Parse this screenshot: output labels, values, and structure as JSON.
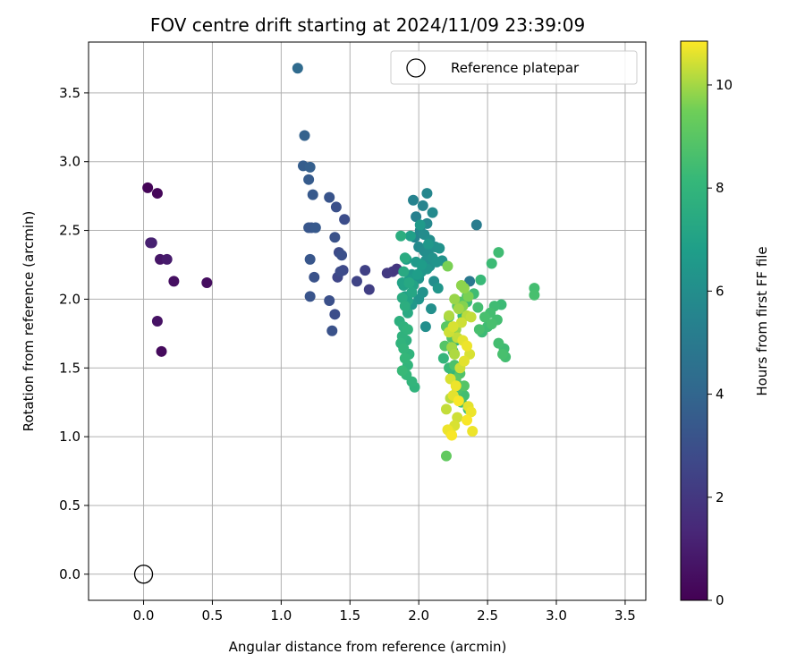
{
  "chart_data": {
    "type": "scatter",
    "title": "FOV centre drift starting at 2024/11/09 23:39:09",
    "xlabel": "Angular distance from reference (arcmin)",
    "ylabel": "Rotation from reference (arcmin)",
    "xlim": [
      -0.4,
      3.65
    ],
    "ylim": [
      -0.19,
      3.87
    ],
    "xticks": [
      0.0,
      0.5,
      1.0,
      1.5,
      2.0,
      2.5,
      3.0,
      3.5
    ],
    "yticks": [
      0.0,
      0.5,
      1.0,
      1.5,
      2.0,
      2.5,
      3.0,
      3.5
    ],
    "grid": true,
    "legend": {
      "position": "top-right",
      "entries": [
        "Reference platepar"
      ]
    },
    "reference_point": {
      "x": 0.0,
      "y": 0.0,
      "label": "Reference platepar"
    },
    "colorbar": {
      "label": "Hours from first FF file",
      "range": [
        0,
        10.85
      ],
      "ticks": [
        0,
        2,
        4,
        6,
        8,
        10
      ],
      "colormap": "viridis"
    },
    "series": [
      {
        "x": [
          0.03,
          0.1,
          0.05,
          0.06,
          0.12,
          0.17,
          0.22,
          0.46,
          0.1,
          0.13
        ],
        "y": [
          2.81,
          2.77,
          2.41,
          2.41,
          2.29,
          2.29,
          2.13,
          2.12,
          1.84,
          1.62
        ],
        "c": [
          0.1,
          0.2,
          1.0,
          1.1,
          0.7,
          0.9,
          0.5,
          0.4,
          0.6,
          0.3
        ]
      },
      {
        "x": [
          1.12,
          1.17,
          1.16,
          1.21,
          1.2,
          1.23,
          1.2,
          1.22,
          1.25,
          1.35,
          1.4,
          1.46,
          1.39,
          1.42,
          1.44,
          1.21,
          1.24,
          1.21,
          1.35,
          1.39,
          1.37,
          1.45,
          1.43,
          1.41,
          1.55,
          1.61,
          1.64,
          1.77,
          1.81,
          1.84
        ],
        "y": [
          3.68,
          3.19,
          2.97,
          2.96,
          2.87,
          2.76,
          2.52,
          2.52,
          2.52,
          2.74,
          2.67,
          2.58,
          2.45,
          2.34,
          2.32,
          2.29,
          2.16,
          2.02,
          1.99,
          1.89,
          1.77,
          2.21,
          2.2,
          2.16,
          2.13,
          2.21,
          2.07,
          2.19,
          2.2,
          2.22
        ],
        "c": [
          4.2,
          3.8,
          3.6,
          3.7,
          3.5,
          3.4,
          3.3,
          3.2,
          3.4,
          3.2,
          3.0,
          2.9,
          3.1,
          2.8,
          3.0,
          3.3,
          3.1,
          3.2,
          3.0,
          2.9,
          3.1,
          2.7,
          2.8,
          2.6,
          2.5,
          2.4,
          2.3,
          2.1,
          2.0,
          1.9
        ]
      },
      {
        "x": [
          1.96,
          2.06,
          2.03,
          1.98,
          2.1,
          2.06,
          2.01,
          2.04,
          1.97,
          2.08,
          2.12,
          2.15,
          2.0,
          2.04,
          2.07,
          2.1,
          2.05,
          2.13,
          2.08,
          2.02,
          1.95,
          2.0,
          1.93,
          1.89,
          1.91,
          1.98,
          2.06,
          2.11,
          2.03,
          2.0,
          1.95,
          2.09,
          2.05,
          2.14,
          2.37,
          2.42,
          2.01,
          1.94,
          1.88,
          1.9,
          1.92,
          1.96,
          1.99,
          2.02,
          2.07,
          2.17
        ],
        "y": [
          2.72,
          2.77,
          2.68,
          2.6,
          2.63,
          2.55,
          2.5,
          2.47,
          2.45,
          2.43,
          2.38,
          2.37,
          2.38,
          2.35,
          2.33,
          2.3,
          2.28,
          2.27,
          2.24,
          2.2,
          2.18,
          2.15,
          2.14,
          2.1,
          2.29,
          2.27,
          2.22,
          2.13,
          2.05,
          2.0,
          1.96,
          1.93,
          1.8,
          2.08,
          2.13,
          2.54,
          2.54,
          2.46,
          2.12,
          2.02,
          1.99,
          2.1,
          2.18,
          2.25,
          2.4,
          2.28
        ],
        "c": [
          5.4,
          5.6,
          5.5,
          5.3,
          5.8,
          5.7,
          5.6,
          5.9,
          5.5,
          6.0,
          6.1,
          6.2,
          5.8,
          5.9,
          6.0,
          6.2,
          6.1,
          6.3,
          6.1,
          6.4,
          6.5,
          6.3,
          6.7,
          7.0,
          6.8,
          6.6,
          6.4,
          6.0,
          6.2,
          6.3,
          6.5,
          6.1,
          6.0,
          6.4,
          4.9,
          5.1,
          6.6,
          6.9,
          7.0,
          6.9,
          7.1,
          7.0,
          6.8,
          6.7,
          6.5,
          6.2
        ]
      },
      {
        "x": [
          1.87,
          1.9,
          1.89,
          1.93,
          1.95,
          1.88,
          1.9,
          1.92,
          1.86,
          1.89,
          1.92,
          1.88,
          1.91,
          1.87,
          1.89,
          1.93,
          1.9,
          1.92,
          1.88,
          1.91,
          1.95,
          1.97,
          2.18,
          2.22,
          2.25,
          2.27,
          2.3,
          2.33,
          2.31,
          2.36,
          2.27,
          2.25,
          2.32,
          2.35,
          2.4,
          2.43,
          2.48,
          2.52,
          2.55,
          2.6,
          2.57,
          2.53,
          2.5,
          2.46,
          2.44,
          2.58,
          2.62,
          2.61,
          2.63,
          2.58,
          2.84,
          2.84,
          2.53,
          2.45,
          2.35,
          2.3,
          2.28,
          2.22,
          2.2,
          2.24,
          2.19,
          2.26,
          2.3,
          2.27,
          2.33,
          2.28
        ],
        "y": [
          2.46,
          2.3,
          2.2,
          2.12,
          2.05,
          2.01,
          1.95,
          1.9,
          1.84,
          1.8,
          1.78,
          1.73,
          1.7,
          1.68,
          1.64,
          1.6,
          1.57,
          1.52,
          1.48,
          1.45,
          1.4,
          1.36,
          1.57,
          1.5,
          1.45,
          1.4,
          1.35,
          1.3,
          1.25,
          1.2,
          1.7,
          1.62,
          1.88,
          1.98,
          2.04,
          1.94,
          1.87,
          1.9,
          1.95,
          1.96,
          1.85,
          1.82,
          1.8,
          1.76,
          1.78,
          1.68,
          1.64,
          1.6,
          1.58,
          2.34,
          2.08,
          2.03,
          2.26,
          2.14,
          2.02,
          1.98,
          1.95,
          1.87,
          1.8,
          1.72,
          1.66,
          1.52,
          1.46,
          1.42,
          1.37,
          1.34
        ],
        "c": [
          7.6,
          7.5,
          7.4,
          7.3,
          7.2,
          7.5,
          7.6,
          7.4,
          7.7,
          7.8,
          7.9,
          7.8,
          7.7,
          7.9,
          8.0,
          7.9,
          8.1,
          8.0,
          8.2,
          8.1,
          8.0,
          7.9,
          8.0,
          8.2,
          8.1,
          8.3,
          8.4,
          8.5,
          8.3,
          8.4,
          8.0,
          8.1,
          8.2,
          8.3,
          8.4,
          8.5,
          8.6,
          8.5,
          8.4,
          8.3,
          8.5,
          8.6,
          8.4,
          8.3,
          8.6,
          8.5,
          8.4,
          8.6,
          8.5,
          8.4,
          8.5,
          8.6,
          8.3,
          8.2,
          8.7,
          8.9,
          9.0,
          9.1,
          9.0,
          8.8,
          8.9,
          8.7,
          8.8,
          9.0,
          8.9,
          8.7
        ]
      },
      {
        "x": [
          2.21,
          2.33,
          2.26,
          2.29,
          2.22,
          2.35,
          2.38,
          2.31,
          2.25,
          2.22,
          2.28,
          2.32,
          2.35,
          2.37,
          2.33,
          2.3,
          2.23,
          2.27,
          2.25,
          2.29,
          2.36,
          2.38,
          2.35,
          2.26,
          2.21,
          2.24,
          2.23,
          2.28,
          2.2,
          2.23,
          2.39,
          2.26,
          2.24,
          2.27,
          2.32,
          2.36,
          2.31
        ],
        "y": [
          2.24,
          2.08,
          2.0,
          1.93,
          1.88,
          1.88,
          1.87,
          1.83,
          1.8,
          1.76,
          1.72,
          1.7,
          1.66,
          1.6,
          1.55,
          1.5,
          1.42,
          1.37,
          1.3,
          1.26,
          1.22,
          1.18,
          1.12,
          1.08,
          1.05,
          1.01,
          1.03,
          1.14,
          1.2,
          1.28,
          1.04,
          1.6,
          1.65,
          1.78,
          1.95,
          2.02,
          2.1
        ],
        "c": [
          9.6,
          9.8,
          9.9,
          10.0,
          10.1,
          10.2,
          10.3,
          10.4,
          10.5,
          10.4,
          10.3,
          10.6,
          10.7,
          10.5,
          10.6,
          10.4,
          10.5,
          10.7,
          10.6,
          10.8,
          10.6,
          10.7,
          10.8,
          10.5,
          10.7,
          10.8,
          10.6,
          10.4,
          10.3,
          10.2,
          10.7,
          10.1,
          10.0,
          9.9,
          9.7,
          9.6,
          9.8
        ]
      },
      {
        "x": [
          2.2
        ],
        "y": [
          0.86
        ],
        "c": [
          9.2
        ]
      }
    ]
  }
}
